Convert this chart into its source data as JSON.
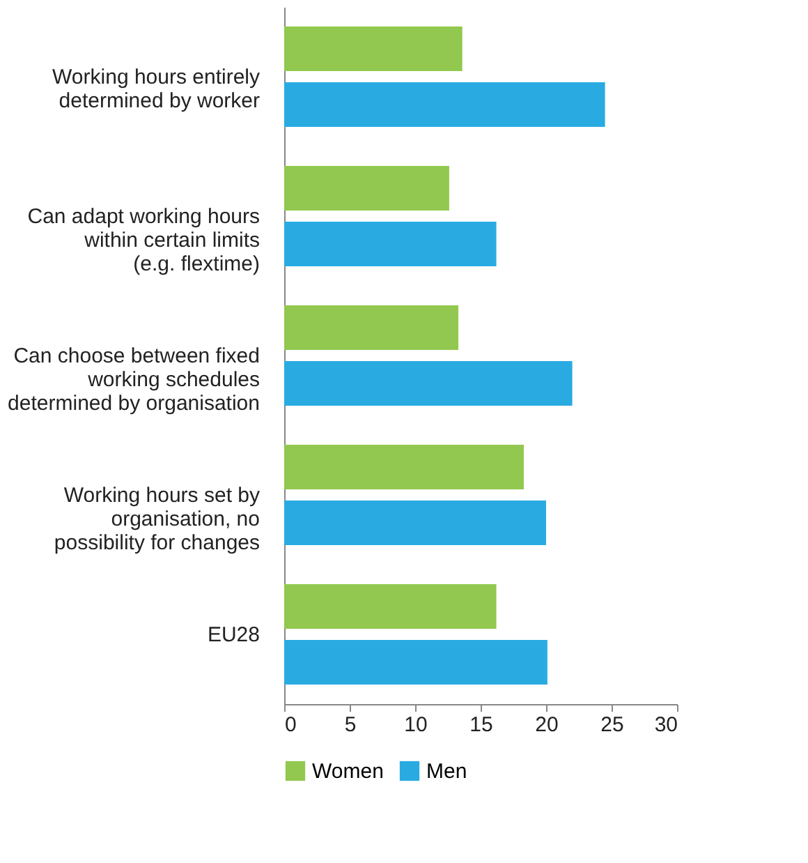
{
  "chart_data": {
    "type": "bar",
    "orientation": "horizontal",
    "categories": [
      "Working hours entirely determined by worker",
      "Can adapt working hours within certain limits (e.g. flextime)",
      "Can choose between fixed working schedules determined by organisation",
      "Working hours set by organisation, no possibility for changes",
      "EU28"
    ],
    "series": [
      {
        "name": "Women",
        "color": "#92c84f",
        "values": [
          13.6,
          12.6,
          13.3,
          18.3,
          16.2
        ]
      },
      {
        "name": "Men",
        "color": "#29abe2",
        "values": [
          24.5,
          16.2,
          22.0,
          20.0,
          20.1
        ]
      }
    ],
    "xlim": [
      0,
      30
    ],
    "xticks": [
      0,
      5,
      10,
      15,
      20,
      25,
      30
    ],
    "grid": false,
    "legend": "bottom"
  }
}
